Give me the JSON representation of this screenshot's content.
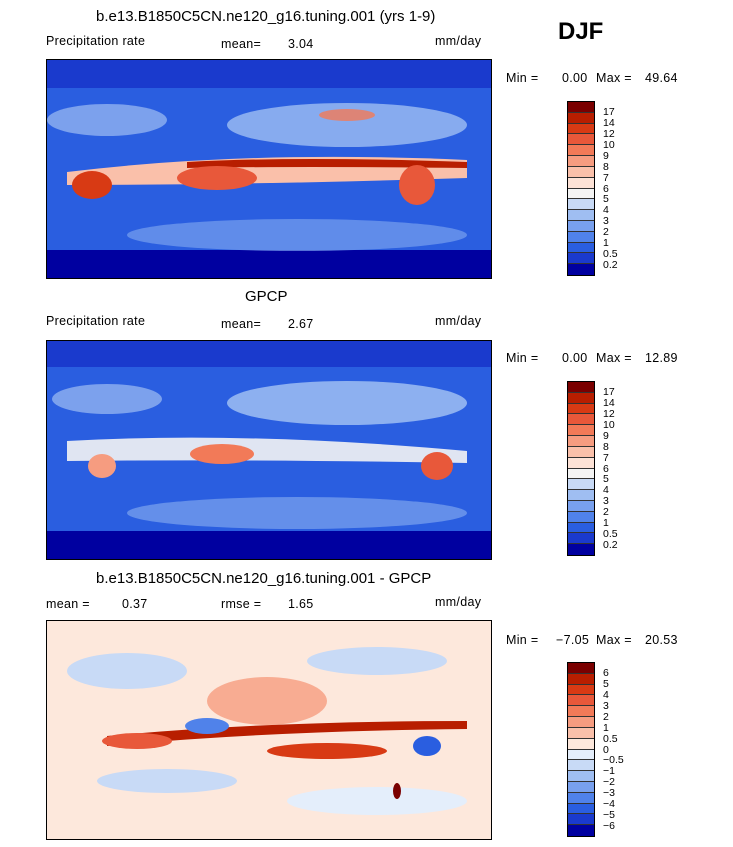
{
  "season": "DJF",
  "panels": [
    {
      "title": "b.e13.B1850C5CN.ne120_g16.tuning.001 (yrs 1-9)",
      "left_label": "Precipitation rate",
      "stat_label": "mean=",
      "stat_value": "3.04",
      "units": "mm/day",
      "min_label": "Min =",
      "min_value": "0.00",
      "max_label": "Max =",
      "max_value": "49.64",
      "ticks": [
        "17",
        "14",
        "12",
        "10",
        "9",
        "8",
        "7",
        "6",
        "5",
        "4",
        "3",
        "2",
        "1",
        "0.5",
        "0.2"
      ],
      "colors": [
        "#7a0000",
        "#b81e00",
        "#d83a14",
        "#e8583a",
        "#f27a58",
        "#f69c80",
        "#fac0aa",
        "#fde2d6",
        "#f4f4f4",
        "#c8daf6",
        "#9fbef2",
        "#78a0ee",
        "#5082ea",
        "#2a5ee0",
        "#1a3acd",
        "#0000a0"
      ]
    },
    {
      "title": "GPCP",
      "left_label": "Precipitation rate",
      "stat_label": "mean=",
      "stat_value": "2.67",
      "units": "mm/day",
      "min_label": "Min =",
      "min_value": "0.00",
      "max_label": "Max =",
      "max_value": "12.89",
      "ticks": [
        "17",
        "14",
        "12",
        "10",
        "9",
        "8",
        "7",
        "6",
        "5",
        "4",
        "3",
        "2",
        "1",
        "0.5",
        "0.2"
      ],
      "colors": [
        "#7a0000",
        "#b81e00",
        "#d83a14",
        "#e8583a",
        "#f27a58",
        "#f69c80",
        "#fac0aa",
        "#fde2d6",
        "#f4f4f4",
        "#c8daf6",
        "#9fbef2",
        "#78a0ee",
        "#5082ea",
        "#2a5ee0",
        "#1a3acd",
        "#0000a0"
      ]
    },
    {
      "title": "b.e13.B1850C5CN.ne120_g16.tuning.001 - GPCP",
      "left_label": "mean =",
      "left_value": "0.37",
      "stat_label": "rmse =",
      "stat_value": "1.65",
      "units": "mm/day",
      "min_label": "Min =",
      "min_value": "−7.05",
      "max_label": "Max =",
      "max_value": "20.53",
      "ticks": [
        "6",
        "5",
        "4",
        "3",
        "2",
        "1",
        "0.5",
        "0",
        "−0.5",
        "−1",
        "−2",
        "−3",
        "−4",
        "−5",
        "−6"
      ],
      "colors": [
        "#7a0000",
        "#b81e00",
        "#d83a14",
        "#e8583a",
        "#f27a58",
        "#f69c80",
        "#fac0aa",
        "#fde8dc",
        "#e4eefb",
        "#c8daf6",
        "#9fbef2",
        "#78a0ee",
        "#5082ea",
        "#2a5ee0",
        "#1a3acd",
        "#0000a0"
      ]
    }
  ]
}
